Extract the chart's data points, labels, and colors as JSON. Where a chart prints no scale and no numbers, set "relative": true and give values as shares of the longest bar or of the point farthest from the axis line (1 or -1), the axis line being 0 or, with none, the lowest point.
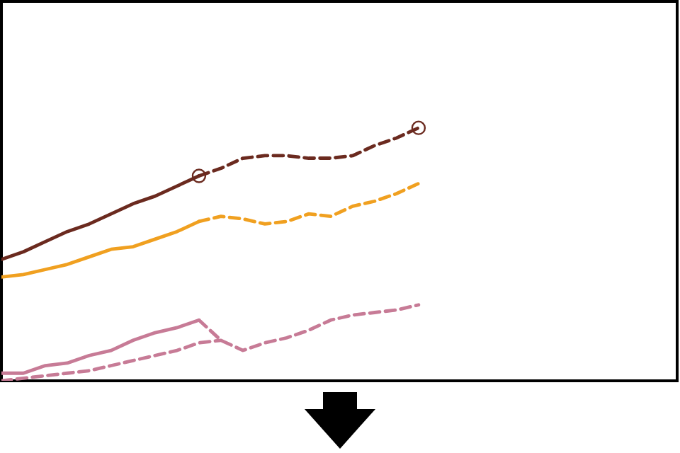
{
  "chart_data": {
    "type": "line",
    "relative": true,
    "tick_labels": false,
    "categories": [
      null,
      null,
      null,
      null,
      null,
      null,
      null,
      null,
      null,
      null,
      null,
      null,
      null,
      null,
      null,
      null,
      null,
      null,
      null,
      null
    ],
    "series": [
      {
        "color": "#6b2a1f",
        "line_style": "solid",
        "values": [
          0.48,
          0.51,
          0.55,
          0.59,
          0.62,
          0.66,
          0.7,
          0.73,
          0.77,
          0.81,
          null,
          null,
          null,
          null,
          null,
          null,
          null,
          null,
          null,
          null
        ]
      },
      {
        "color": "#6b2a1f",
        "line_style": "dashed",
        "values": [
          null,
          null,
          null,
          null,
          null,
          null,
          null,
          null,
          null,
          0.81,
          0.84,
          0.88,
          0.89,
          0.89,
          0.88,
          0.88,
          0.89,
          0.93,
          0.96,
          1.0
        ]
      },
      {
        "color": "#f0a020",
        "line_style": "solid",
        "values": [
          0.41,
          0.42,
          0.44,
          0.46,
          0.49,
          0.52,
          0.53,
          0.56,
          0.59,
          0.63,
          null,
          null,
          null,
          null,
          null,
          null,
          null,
          null,
          null,
          null
        ]
      },
      {
        "color": "#f0a020",
        "line_style": "dashed",
        "values": [
          null,
          null,
          null,
          null,
          null,
          null,
          null,
          null,
          null,
          0.63,
          0.65,
          0.64,
          0.62,
          0.63,
          0.66,
          0.65,
          0.69,
          0.71,
          0.74,
          0.78
        ]
      },
      {
        "color": "#c77b96",
        "line_style": "solid",
        "values": [
          0.03,
          0.03,
          0.06,
          0.07,
          0.1,
          0.12,
          0.16,
          0.19,
          0.21,
          0.24,
          null,
          null,
          null,
          null,
          null,
          null,
          null,
          null,
          null,
          null
        ]
      },
      {
        "color": "#c77b96",
        "line_style": "dashed",
        "values": [
          null,
          null,
          null,
          null,
          null,
          null,
          null,
          null,
          null,
          0.24,
          0.16,
          0.12,
          0.15,
          0.17,
          0.2,
          0.24,
          0.26,
          0.27,
          0.28,
          0.3
        ]
      },
      {
        "color": "#c77b96",
        "line_style": "dashed",
        "values": [
          0.0,
          0.01,
          0.02,
          0.03,
          0.04,
          0.06,
          0.08,
          0.1,
          0.12,
          0.15,
          0.16,
          null,
          null,
          null,
          null,
          null,
          null,
          null,
          null,
          null
        ]
      }
    ]
  }
}
